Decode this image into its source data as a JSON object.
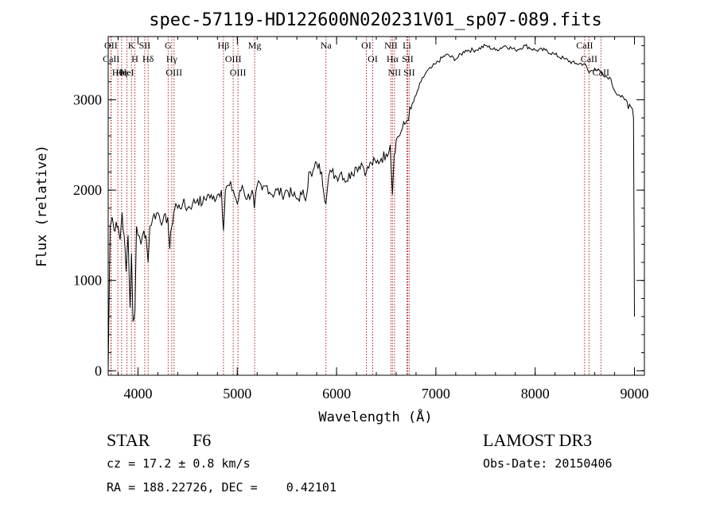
{
  "chart_data": {
    "type": "line",
    "title": "spec-57119-HD122600N020231V01_sp07-089.fits",
    "xlabel": "Wavelength (Å)",
    "ylabel": "Flux (relative)",
    "xlim": [
      3700,
      9100
    ],
    "ylim": [
      -50,
      3700
    ],
    "xticks": [
      4000,
      5000,
      6000,
      7000,
      8000,
      9000
    ],
    "yticks": [
      0,
      1000,
      2000,
      3000
    ],
    "grid": false,
    "series": [
      {
        "name": "Flux",
        "x": [
          3700,
          3720,
          3740,
          3760,
          3780,
          3800,
          3820,
          3840,
          3860,
          3880,
          3900,
          3920,
          3935,
          3950,
          3969,
          3985,
          4000,
          4030,
          4060,
          4080,
          4102,
          4120,
          4150,
          4200,
          4250,
          4300,
          4320,
          4340,
          4360,
          4380,
          4400,
          4450,
          4500,
          4550,
          4600,
          4650,
          4700,
          4750,
          4800,
          4840,
          4861,
          4880,
          4920,
          4960,
          5000,
          5050,
          5100,
          5150,
          5172,
          5200,
          5250,
          5300,
          5350,
          5400,
          5450,
          5500,
          5550,
          5600,
          5650,
          5700,
          5720,
          5750,
          5800,
          5850,
          5893,
          5920,
          5950,
          6000,
          6050,
          6100,
          6150,
          6200,
          6250,
          6300,
          6350,
          6400,
          6450,
          6500,
          6540,
          6563,
          6580,
          6600,
          6650,
          6700,
          6750,
          6800,
          6850,
          6900,
          6950,
          7000,
          7100,
          7200,
          7300,
          7400,
          7500,
          7600,
          7700,
          7800,
          7900,
          8000,
          8100,
          8200,
          8300,
          8400,
          8498,
          8542,
          8600,
          8662,
          8700,
          8750,
          8800,
          8850,
          8900,
          8950,
          8980,
          8990,
          9000
        ],
        "values": [
          20,
          1600,
          1700,
          1550,
          1650,
          1600,
          1450,
          1750,
          1500,
          1100,
          1500,
          700,
          1300,
          550,
          650,
          1600,
          1500,
          1400,
          1550,
          1500,
          1200,
          1600,
          1700,
          1750,
          1650,
          1700,
          1350,
          1600,
          1750,
          1850,
          1800,
          1850,
          1800,
          1850,
          1900,
          1850,
          1950,
          1900,
          1950,
          2000,
          1550,
          2000,
          2050,
          2000,
          1850,
          2050,
          1900,
          2000,
          1800,
          2050,
          2000,
          2050,
          1950,
          2000,
          1950,
          2000,
          1950,
          1900,
          1950,
          1950,
          2200,
          2150,
          2300,
          2200,
          1850,
          2150,
          2200,
          2150,
          2200,
          2100,
          2200,
          2250,
          2300,
          2200,
          2300,
          2300,
          2350,
          2400,
          2500,
          1950,
          2400,
          2550,
          2650,
          2750,
          2900,
          3050,
          3200,
          3300,
          3350,
          3400,
          3500,
          3450,
          3550,
          3550,
          3600,
          3550,
          3600,
          3550,
          3600,
          3550,
          3550,
          3500,
          3450,
          3400,
          3400,
          3300,
          3350,
          3300,
          3250,
          3250,
          3100,
          3050,
          3000,
          2950,
          2900,
          2800,
          600
        ]
      }
    ],
    "line_markers": [
      {
        "name": "Hθ",
        "wave": 3797
      },
      {
        "name": "OII",
        "wave": 3727
      },
      {
        "name": "CaII",
        "wave": 3730
      },
      {
        "name": "Hη",
        "wave": 3835
      },
      {
        "name": "HeI",
        "wave": 3889
      },
      {
        "name": "K",
        "wave": 3934
      },
      {
        "name": "H",
        "wave": 3969
      },
      {
        "name": "SII",
        "wave": 4068
      },
      {
        "name": "Hδ",
        "wave": 4102
      },
      {
        "name": "OIII",
        "wave": 4363
      },
      {
        "name": "Hγ",
        "wave": 4340
      },
      {
        "name": "G",
        "wave": 4304
      },
      {
        "name": "Hβ",
        "wave": 4861
      },
      {
        "name": "OIII",
        "wave": 4959
      },
      {
        "name": "OIII",
        "wave": 5007
      },
      {
        "name": "Mg",
        "wave": 5175
      },
      {
        "name": "Na",
        "wave": 5893
      },
      {
        "name": "OI",
        "wave": 6300
      },
      {
        "name": "OI",
        "wave": 6364
      },
      {
        "name": "NII",
        "wave": 6548
      },
      {
        "name": "Hα",
        "wave": 6563
      },
      {
        "name": "NII",
        "wave": 6583
      },
      {
        "name": "SII",
        "wave": 6716
      },
      {
        "name": "SII",
        "wave": 6731
      },
      {
        "name": "Li",
        "wave": 6708
      },
      {
        "name": "CaII",
        "wave": 8498
      },
      {
        "name": "CaII",
        "wave": 8542
      },
      {
        "name": "CaII",
        "wave": 8662
      }
    ]
  },
  "info": {
    "object_class": "STAR",
    "subclass": "F6",
    "survey": "LAMOST DR3",
    "velocity": "cz = 17.2 ± 0.8 km/s",
    "obs_date": "Obs-Date: 20150406",
    "coords": "RA = 188.22726, DEC =    0.42101"
  },
  "colors": {
    "marker_line": "#b22222",
    "spectrum": "#000000",
    "axes": "#000000"
  }
}
